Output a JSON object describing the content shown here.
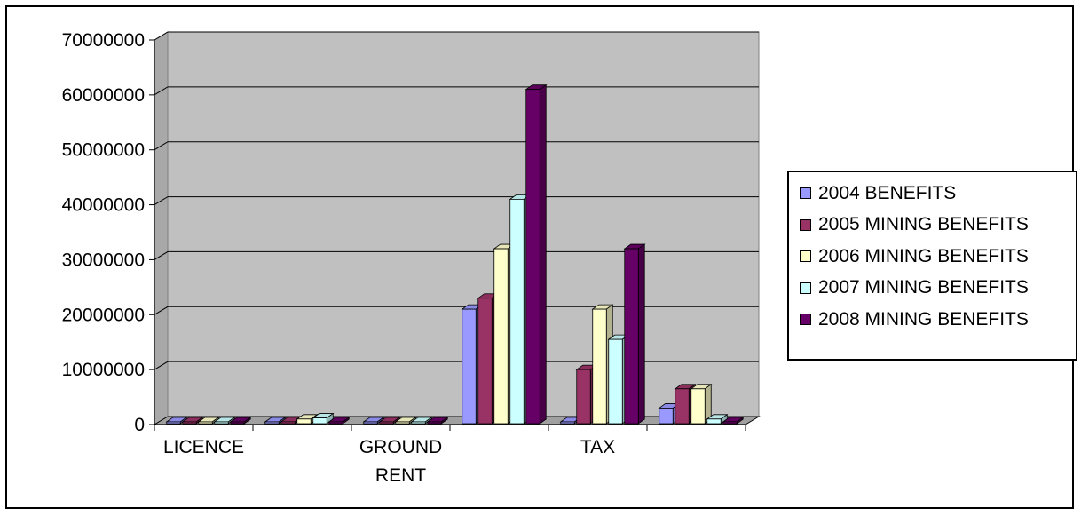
{
  "chart_data": {
    "type": "bar",
    "title": "",
    "xlabel": "",
    "ylabel": "",
    "ylim": [
      0,
      70000000
    ],
    "y_ticks": [
      "0",
      "10000000",
      "20000000",
      "30000000",
      "40000000",
      "50000000",
      "60000000",
      "70000000"
    ],
    "categories": [
      "LICENCE",
      "",
      "GROUND RENT",
      "",
      "TAX",
      ""
    ],
    "series": [
      {
        "name": "2004 BENEFITS",
        "color": "#9999FF",
        "values": [
          0,
          0,
          0,
          21000000,
          0,
          3000000
        ]
      },
      {
        "name": "2005 MINING BENEFITS",
        "color": "#993366",
        "values": [
          0,
          500000,
          0,
          23000000,
          10000000,
          6500000
        ]
      },
      {
        "name": "2006 MINING BENEFITS",
        "color": "#FFFFCC",
        "values": [
          0,
          1000000,
          0,
          32000000,
          21000000,
          6500000
        ]
      },
      {
        "name": "2007 MINING BENEFITS",
        "color": "#CCFFFF",
        "values": [
          0,
          1200000,
          0,
          41000000,
          15500000,
          1000000
        ]
      },
      {
        "name": "2008 MINING BENEFITS",
        "color": "#660066",
        "values": [
          0,
          500000,
          0,
          61000000,
          32000000,
          500000
        ]
      }
    ],
    "grid": true,
    "legend_position": "right",
    "plot_background": "#C0C0C0"
  }
}
